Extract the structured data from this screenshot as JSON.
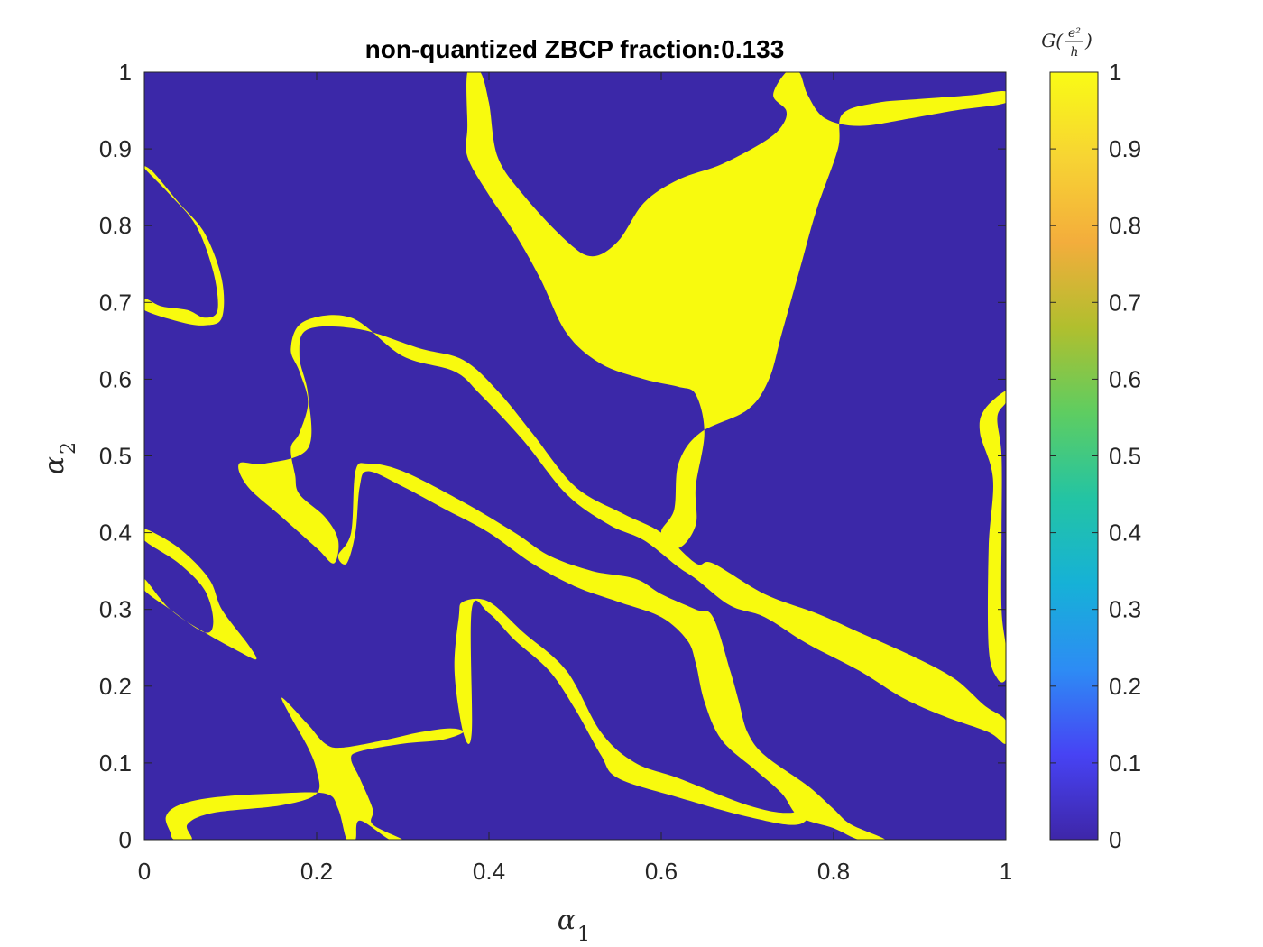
{
  "chart_data": {
    "type": "heatmap",
    "title": "non-quantized ZBCP fraction:0.133",
    "xlabel": {
      "symbol": "α",
      "subscript": "1"
    },
    "ylabel": {
      "symbol": "α",
      "subscript": "2"
    },
    "xlim": [
      0,
      1
    ],
    "ylim": [
      0,
      1
    ],
    "xticks": [
      "0",
      "0.2",
      "0.4",
      "0.6",
      "0.8",
      "1"
    ],
    "xtick_values": [
      0,
      0.2,
      0.4,
      0.6,
      0.8,
      1
    ],
    "yticks": [
      "0",
      "0.1",
      "0.2",
      "0.3",
      "0.4",
      "0.5",
      "0.6",
      "0.7",
      "0.8",
      "0.9",
      "1"
    ],
    "ytick_values": [
      0,
      0.1,
      0.2,
      0.3,
      0.4,
      0.5,
      0.6,
      0.7,
      0.8,
      0.9,
      1
    ],
    "colorbar": {
      "label": {
        "prefix": "G(",
        "numerator": "e²",
        "denominator": "h",
        "suffix": ")"
      },
      "range": [
        0,
        1
      ],
      "ticks": [
        "0",
        "0.1",
        "0.2",
        "0.3",
        "0.4",
        "0.5",
        "0.6",
        "0.7",
        "0.8",
        "0.9",
        "1"
      ],
      "tick_values": [
        0,
        0.1,
        0.2,
        0.3,
        0.4,
        0.5,
        0.6,
        0.7,
        0.8,
        0.9,
        1
      ],
      "colormap": "parula",
      "stops": [
        "#3e26a8",
        "#4743f4",
        "#2d8cf4",
        "#16b1d7",
        "#23c4a4",
        "#5ecd61",
        "#b0bf2e",
        "#f3ad3c",
        "#f7d433",
        "#f9fb15"
      ]
    },
    "background_value": 0,
    "background_color": "#3b28a8",
    "region_value": 1,
    "region_color": "#f8fa0e",
    "regions": [
      {
        "name": "top-center-blob",
        "points": [
          [
            0.375,
            1
          ],
          [
            0.39,
            1
          ],
          [
            0.4,
            0.96
          ],
          [
            0.41,
            0.89
          ],
          [
            0.44,
            0.84
          ],
          [
            0.49,
            0.78
          ],
          [
            0.52,
            0.76
          ],
          [
            0.55,
            0.78
          ],
          [
            0.58,
            0.83
          ],
          [
            0.62,
            0.86
          ],
          [
            0.67,
            0.88
          ],
          [
            0.72,
            0.91
          ],
          [
            0.74,
            0.93
          ],
          [
            0.745,
            0.95
          ],
          [
            0.73,
            0.97
          ],
          [
            0.745,
            1
          ],
          [
            0.76,
            1
          ],
          [
            0.77,
            0.97
          ],
          [
            0.79,
            0.94
          ],
          [
            0.83,
            0.93
          ],
          [
            0.89,
            0.94
          ],
          [
            0.94,
            0.95
          ],
          [
            1,
            0.96
          ],
          [
            1,
            0.975
          ],
          [
            0.96,
            0.97
          ],
          [
            0.9,
            0.965
          ],
          [
            0.85,
            0.96
          ],
          [
            0.81,
            0.945
          ],
          [
            0.805,
            0.9
          ],
          [
            0.78,
            0.82
          ],
          [
            0.76,
            0.74
          ],
          [
            0.74,
            0.66
          ],
          [
            0.725,
            0.6
          ],
          [
            0.7,
            0.56
          ],
          [
            0.645,
            0.53
          ],
          [
            0.62,
            0.49
          ],
          [
            0.615,
            0.43
          ],
          [
            0.6,
            0.4
          ],
          [
            0.62,
            0.38
          ],
          [
            0.64,
            0.41
          ],
          [
            0.64,
            0.46
          ],
          [
            0.65,
            0.53
          ],
          [
            0.64,
            0.58
          ],
          [
            0.62,
            0.59
          ],
          [
            0.58,
            0.6
          ],
          [
            0.53,
            0.62
          ],
          [
            0.49,
            0.66
          ],
          [
            0.46,
            0.73
          ],
          [
            0.43,
            0.79
          ],
          [
            0.4,
            0.84
          ],
          [
            0.375,
            0.89
          ],
          [
            0.375,
            0.93
          ]
        ]
      },
      {
        "name": "central-band",
        "points": [
          [
            0.175,
            0.475
          ],
          [
            0.17,
            0.51
          ],
          [
            0.18,
            0.53
          ],
          [
            0.19,
            0.57
          ],
          [
            0.18,
            0.61
          ],
          [
            0.17,
            0.64
          ],
          [
            0.185,
            0.675
          ],
          [
            0.24,
            0.68
          ],
          [
            0.3,
            0.63
          ],
          [
            0.36,
            0.61
          ],
          [
            0.39,
            0.58
          ],
          [
            0.44,
            0.52
          ],
          [
            0.49,
            0.45
          ],
          [
            0.54,
            0.41
          ],
          [
            0.58,
            0.39
          ],
          [
            0.62,
            0.355
          ],
          [
            0.64,
            0.34
          ],
          [
            0.68,
            0.305
          ],
          [
            0.72,
            0.29
          ],
          [
            0.77,
            0.255
          ],
          [
            0.83,
            0.22
          ],
          [
            0.88,
            0.185
          ],
          [
            0.93,
            0.16
          ],
          [
            0.98,
            0.14
          ],
          [
            1,
            0.125
          ],
          [
            1,
            0.155
          ],
          [
            0.975,
            0.175
          ],
          [
            0.94,
            0.21
          ],
          [
            0.89,
            0.24
          ],
          [
            0.83,
            0.27
          ],
          [
            0.78,
            0.295
          ],
          [
            0.72,
            0.32
          ],
          [
            0.66,
            0.36
          ],
          [
            0.64,
            0.36
          ],
          [
            0.6,
            0.4
          ],
          [
            0.555,
            0.425
          ],
          [
            0.5,
            0.46
          ],
          [
            0.45,
            0.53
          ],
          [
            0.41,
            0.585
          ],
          [
            0.37,
            0.625
          ],
          [
            0.32,
            0.64
          ],
          [
            0.25,
            0.665
          ],
          [
            0.19,
            0.665
          ],
          [
            0.18,
            0.63
          ],
          [
            0.19,
            0.58
          ],
          [
            0.19,
            0.51
          ],
          [
            0.14,
            0.49
          ],
          [
            0.11,
            0.49
          ],
          [
            0.12,
            0.46
          ],
          [
            0.16,
            0.42
          ],
          [
            0.2,
            0.38
          ],
          [
            0.22,
            0.36
          ],
          [
            0.225,
            0.39
          ],
          [
            0.21,
            0.42
          ],
          [
            0.18,
            0.45
          ]
        ]
      },
      {
        "name": "lower-middle-band",
        "points": [
          [
            0.225,
            0.37
          ],
          [
            0.24,
            0.4
          ],
          [
            0.245,
            0.48
          ],
          [
            0.26,
            0.49
          ],
          [
            0.3,
            0.48
          ],
          [
            0.37,
            0.44
          ],
          [
            0.43,
            0.4
          ],
          [
            0.47,
            0.37
          ],
          [
            0.52,
            0.35
          ],
          [
            0.57,
            0.34
          ],
          [
            0.6,
            0.32
          ],
          [
            0.64,
            0.3
          ],
          [
            0.66,
            0.29
          ],
          [
            0.68,
            0.22
          ],
          [
            0.69,
            0.18
          ],
          [
            0.7,
            0.14
          ],
          [
            0.72,
            0.11
          ],
          [
            0.77,
            0.07
          ],
          [
            0.8,
            0.04
          ],
          [
            0.82,
            0.02
          ],
          [
            0.86,
            0
          ],
          [
            0.83,
            0
          ],
          [
            0.8,
            0.015
          ],
          [
            0.76,
            0.03
          ],
          [
            0.74,
            0.06
          ],
          [
            0.71,
            0.09
          ],
          [
            0.67,
            0.13
          ],
          [
            0.65,
            0.18
          ],
          [
            0.64,
            0.23
          ],
          [
            0.63,
            0.26
          ],
          [
            0.6,
            0.29
          ],
          [
            0.55,
            0.31
          ],
          [
            0.5,
            0.33
          ],
          [
            0.45,
            0.36
          ],
          [
            0.4,
            0.4
          ],
          [
            0.35,
            0.43
          ],
          [
            0.3,
            0.46
          ],
          [
            0.26,
            0.48
          ],
          [
            0.25,
            0.46
          ],
          [
            0.245,
            0.4
          ],
          [
            0.235,
            0.36
          ]
        ]
      },
      {
        "name": "bottom-band",
        "points": [
          [
            0.37,
            0.31
          ],
          [
            0.4,
            0.31
          ],
          [
            0.44,
            0.27
          ],
          [
            0.49,
            0.22
          ],
          [
            0.53,
            0.14
          ],
          [
            0.57,
            0.1
          ],
          [
            0.62,
            0.08
          ],
          [
            0.7,
            0.045
          ],
          [
            0.75,
            0.035
          ],
          [
            0.78,
            0.05
          ],
          [
            0.76,
            0.02
          ],
          [
            0.7,
            0.03
          ],
          [
            0.62,
            0.055
          ],
          [
            0.55,
            0.08
          ],
          [
            0.53,
            0.11
          ],
          [
            0.5,
            0.17
          ],
          [
            0.47,
            0.22
          ],
          [
            0.43,
            0.26
          ],
          [
            0.4,
            0.295
          ],
          [
            0.38,
            0.3
          ],
          [
            0.38,
            0.14
          ],
          [
            0.37,
            0.14
          ],
          [
            0.36,
            0.22
          ],
          [
            0.365,
            0.29
          ]
        ]
      },
      {
        "name": "bottom-left-cross",
        "points": [
          [
            0.16,
            0.185
          ],
          [
            0.19,
            0.15
          ],
          [
            0.21,
            0.125
          ],
          [
            0.23,
            0.12
          ],
          [
            0.28,
            0.13
          ],
          [
            0.32,
            0.14
          ],
          [
            0.355,
            0.145
          ],
          [
            0.37,
            0.14
          ],
          [
            0.345,
            0.13
          ],
          [
            0.3,
            0.125
          ],
          [
            0.25,
            0.115
          ],
          [
            0.24,
            0.105
          ],
          [
            0.25,
            0.08
          ],
          [
            0.265,
            0.04
          ],
          [
            0.265,
            0.02
          ],
          [
            0.3,
            0
          ],
          [
            0.285,
            0
          ],
          [
            0.25,
            0.025
          ],
          [
            0.245,
            0
          ],
          [
            0.235,
            0
          ],
          [
            0.225,
            0.04
          ],
          [
            0.21,
            0.06
          ],
          [
            0.15,
            0.06
          ],
          [
            0.08,
            0.055
          ],
          [
            0.04,
            0.045
          ],
          [
            0.025,
            0.03
          ],
          [
            0.03,
            0.01
          ],
          [
            0.035,
            0
          ],
          [
            0.055,
            0
          ],
          [
            0.05,
            0.02
          ],
          [
            0.08,
            0.035
          ],
          [
            0.16,
            0.045
          ],
          [
            0.2,
            0.06
          ],
          [
            0.2,
            0.09
          ],
          [
            0.19,
            0.12
          ],
          [
            0.17,
            0.16
          ]
        ]
      },
      {
        "name": "left-upper-arc",
        "points": [
          [
            0,
            0.875
          ],
          [
            0.03,
            0.84
          ],
          [
            0.06,
            0.8
          ],
          [
            0.08,
            0.74
          ],
          [
            0.085,
            0.69
          ],
          [
            0.07,
            0.68
          ],
          [
            0.05,
            0.69
          ],
          [
            0.02,
            0.695
          ],
          [
            0,
            0.705
          ],
          [
            0,
            0.69
          ],
          [
            0.04,
            0.675
          ],
          [
            0.07,
            0.67
          ],
          [
            0.09,
            0.68
          ],
          [
            0.09,
            0.73
          ],
          [
            0.07,
            0.79
          ],
          [
            0.04,
            0.83
          ],
          [
            0.01,
            0.87
          ]
        ]
      },
      {
        "name": "left-middle-arc",
        "points": [
          [
            0,
            0.405
          ],
          [
            0.04,
            0.38
          ],
          [
            0.075,
            0.34
          ],
          [
            0.09,
            0.3
          ],
          [
            0.12,
            0.255
          ],
          [
            0.13,
            0.235
          ],
          [
            0.11,
            0.245
          ],
          [
            0.07,
            0.27
          ],
          [
            0.03,
            0.3
          ],
          [
            0,
            0.34
          ],
          [
            0,
            0.325
          ],
          [
            0.03,
            0.3
          ],
          [
            0.07,
            0.27
          ],
          [
            0.08,
            0.285
          ],
          [
            0.07,
            0.325
          ],
          [
            0.04,
            0.36
          ],
          [
            0,
            0.39
          ]
        ]
      },
      {
        "name": "right-edge-loop",
        "points": [
          [
            1,
            0.585
          ],
          [
            0.975,
            0.56
          ],
          [
            0.97,
            0.53
          ],
          [
            0.985,
            0.47
          ],
          [
            0.98,
            0.38
          ],
          [
            0.98,
            0.25
          ],
          [
            0.99,
            0.21
          ],
          [
            1,
            0.21
          ],
          [
            1,
            0.25
          ],
          [
            0.995,
            0.3
          ],
          [
            0.995,
            0.4
          ],
          [
            0.995,
            0.5
          ],
          [
            0.99,
            0.55
          ],
          [
            1,
            0.57
          ]
        ]
      }
    ]
  }
}
